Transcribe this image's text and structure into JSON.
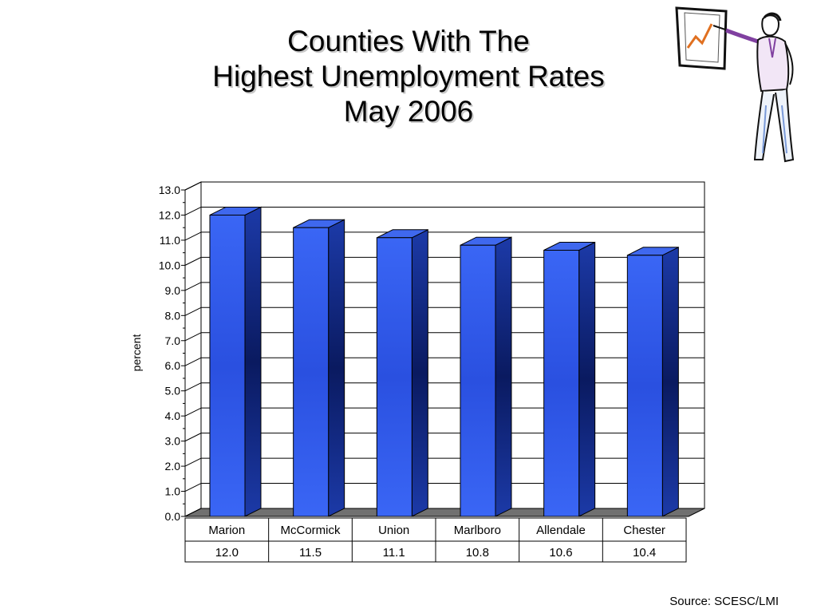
{
  "slide": {
    "title_lines": [
      "Counties With The",
      "Highest Unemployment Rates",
      "May 2006"
    ],
    "source": "Source: SCESC/LMI"
  },
  "colors": {
    "bar_front": "#2f5cf0",
    "bar_side": "#1a3290",
    "bar_top": "#3f68ee",
    "floor": "#707070",
    "grid": "#000000"
  },
  "icons": [
    "presenter-clipart-icon"
  ],
  "chart_data": {
    "type": "bar",
    "title": "Counties With The Highest Unemployment Rates May 2006",
    "categories": [
      "Marion",
      "McCormick",
      "Union",
      "Marlboro",
      "Allendale",
      "Chester"
    ],
    "values": [
      12.0,
      11.5,
      11.1,
      10.8,
      10.6,
      10.4
    ],
    "value_labels": [
      "12.0",
      "11.5",
      "11.1",
      "10.8",
      "10.6",
      "10.4"
    ],
    "ylabel": "percent",
    "xlabel": "",
    "ylim": [
      0,
      13
    ],
    "yticks": [
      "0.0",
      "1.0",
      "2.0",
      "3.0",
      "4.0",
      "5.0",
      "6.0",
      "7.0",
      "8.0",
      "9.0",
      "10.0",
      "11.0",
      "12.0",
      "13.0"
    ],
    "grid": true,
    "legend": "none",
    "data_table": true
  }
}
